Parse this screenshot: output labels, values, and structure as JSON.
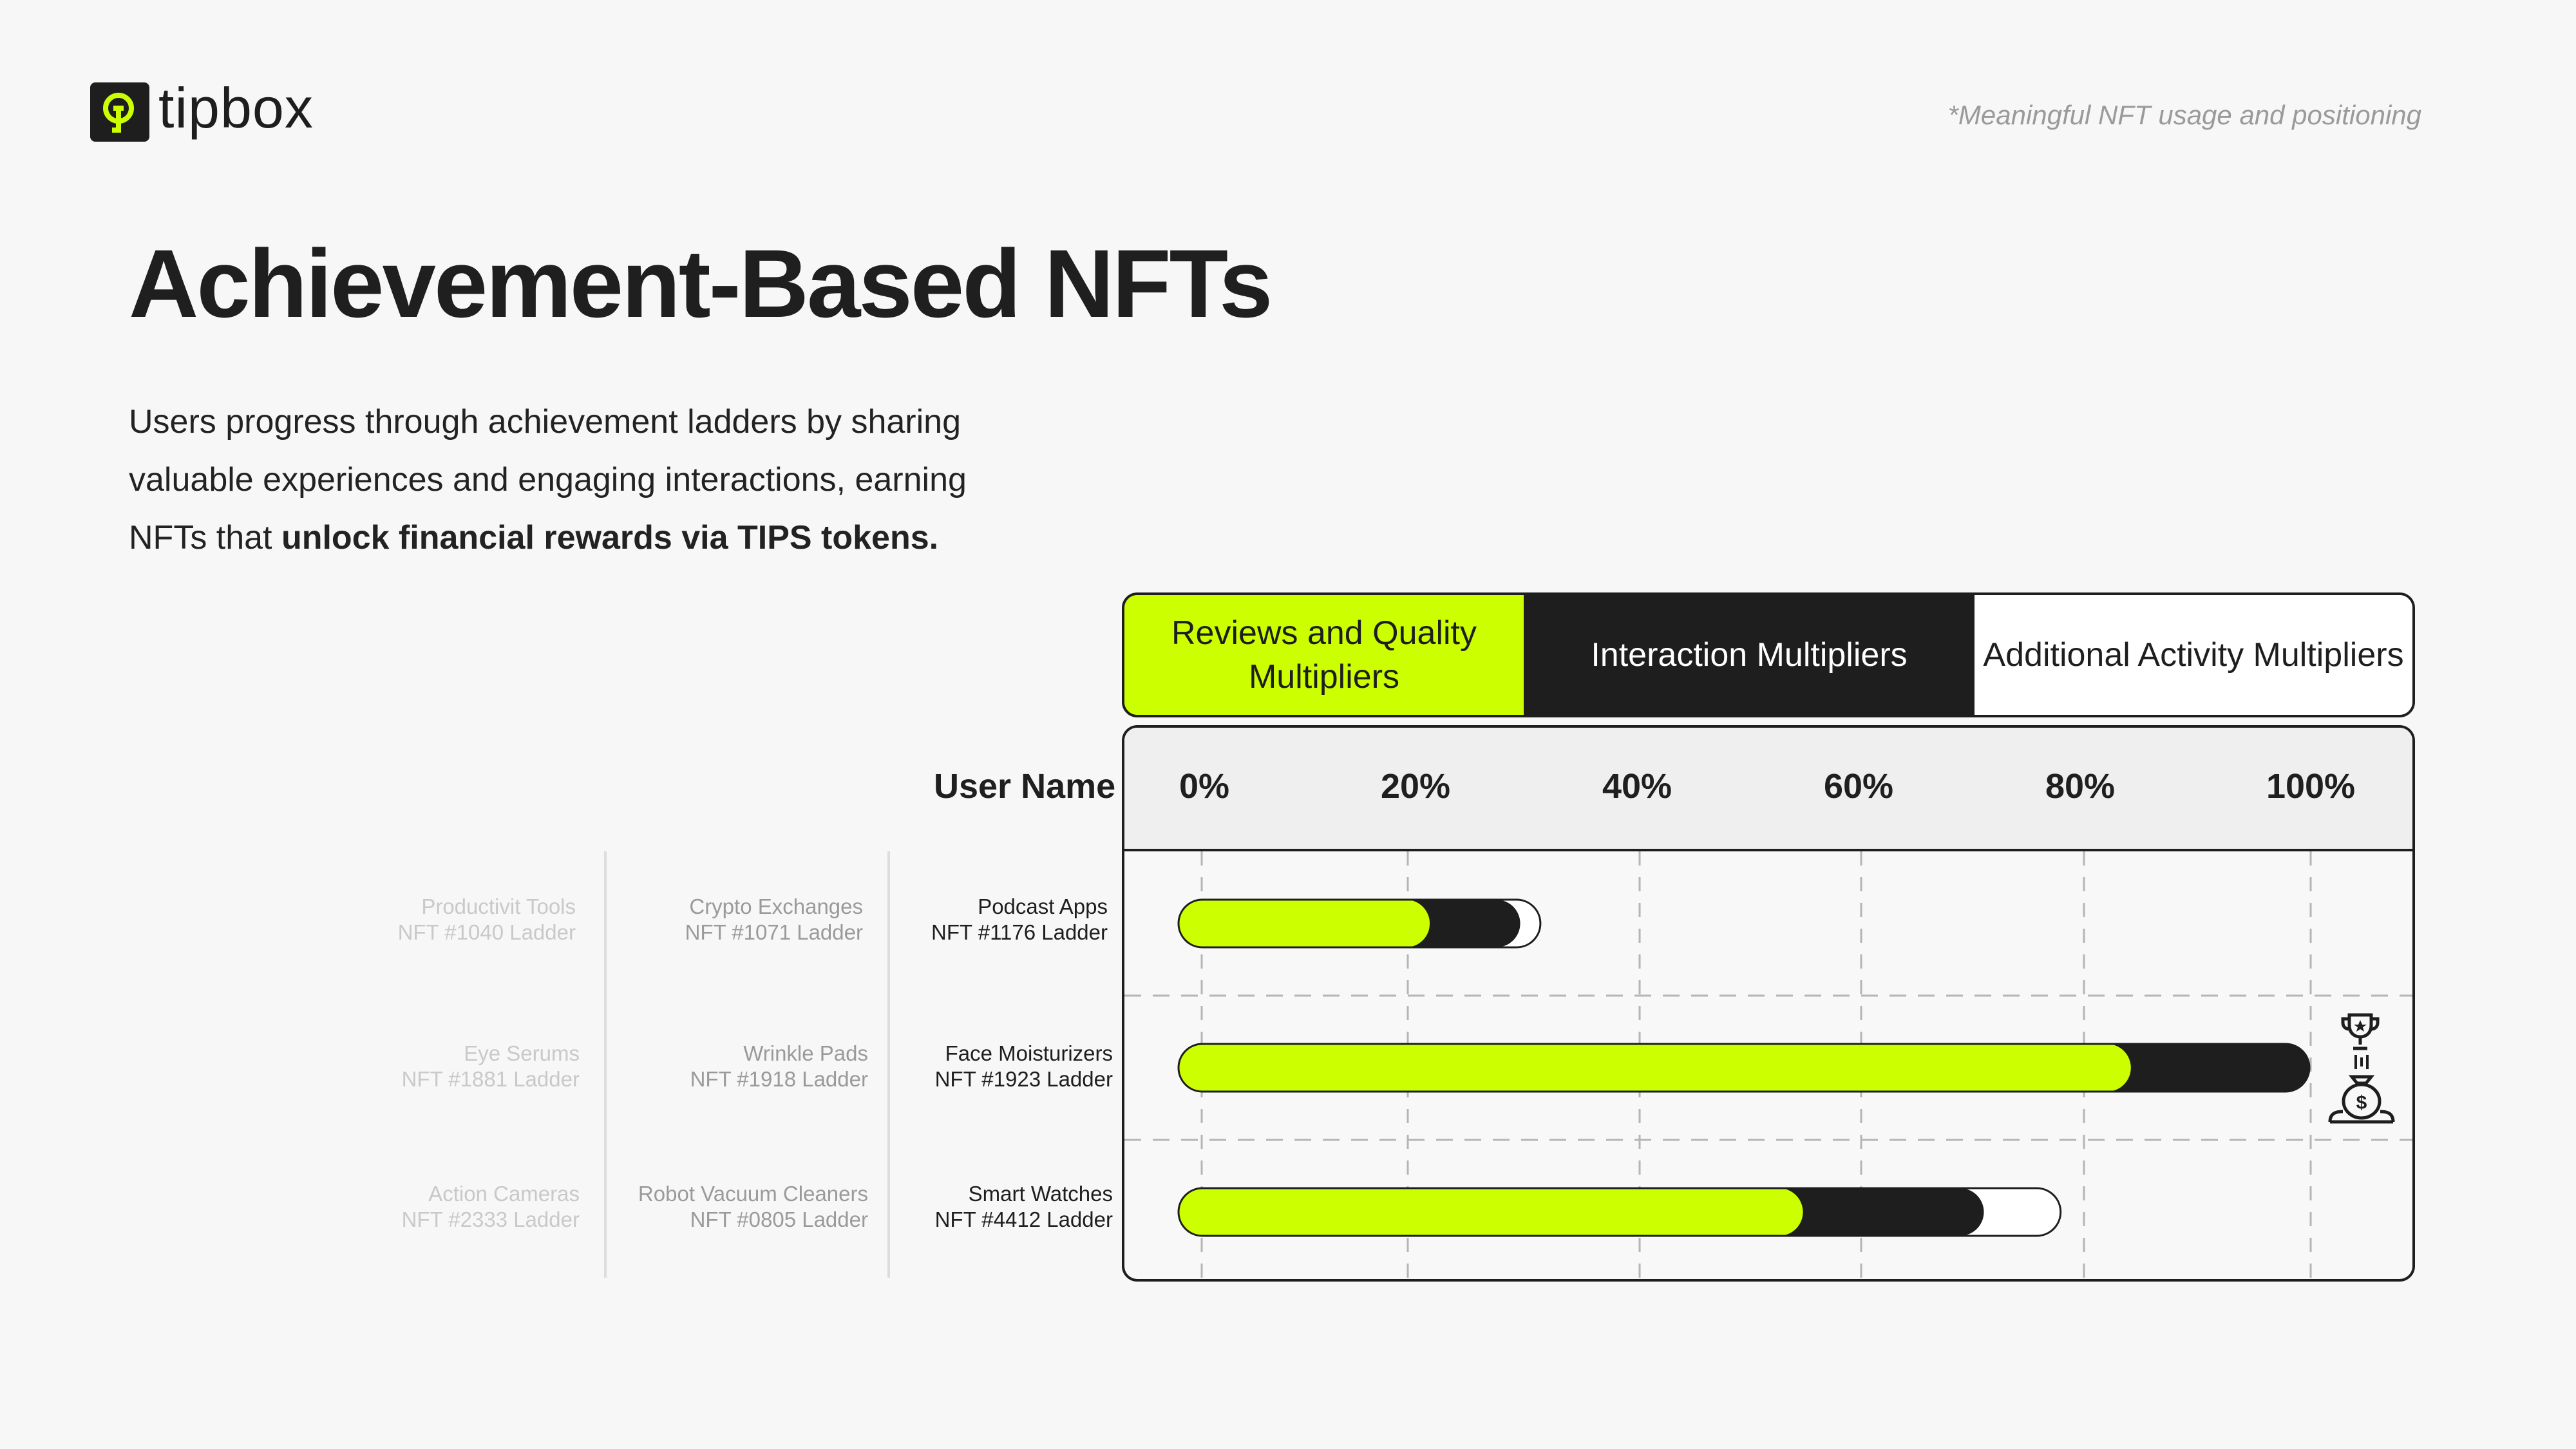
{
  "header": {
    "logo_text": "tipbox",
    "note": "*Meaningful NFT usage and positioning"
  },
  "title": "Achievement-Based NFTs",
  "intro": {
    "line1": "Users progress through achievement ladders by sharing",
    "line2": "valuable experiences and engaging interactions, earning",
    "line3_plain": "NFTs that ",
    "line3_bold": "unlock financial rewards via TIPS tokens."
  },
  "legend": [
    {
      "label": "Reviews and Quality Multipliers",
      "color": "#ccff00"
    },
    {
      "label": "Interaction Multipliers",
      "color": "#1e1e1e"
    },
    {
      "label": "Additional Activity Multipliers",
      "color": "#ffffff"
    }
  ],
  "user_name_header": "User Name",
  "columns": {
    "col1": [
      {
        "category": "Productivit Tools",
        "ladder": "NFT #1040 Ladder"
      },
      {
        "category": "Eye Serums",
        "ladder": "NFT #1881 Ladder"
      },
      {
        "category": "Action Cameras",
        "ladder": "NFT #2333 Ladder"
      }
    ],
    "col2": [
      {
        "category": "Crypto Exchanges",
        "ladder": "NFT #1071 Ladder"
      },
      {
        "category": "Wrinkle Pads",
        "ladder": "NFT #1918 Ladder"
      },
      {
        "category": "Robot Vacuum Cleaners",
        "ladder": "NFT #0805 Ladder"
      }
    ]
  },
  "icons": [
    "trophy-icon",
    "money-bag-icon"
  ],
  "chart_data": {
    "type": "bar",
    "orientation": "horizontal",
    "stacked": true,
    "x_ticks": [
      "0%",
      "20%",
      "40%",
      "60%",
      "80%",
      "100%"
    ],
    "xlim": [
      0,
      100
    ],
    "grid": true,
    "categories": [
      "Podcast Apps NFT #1176 Ladder",
      "Face Moisturizers NFT #1923 Ladder",
      "Smart Watches NFT #4412 Ladder"
    ],
    "rows": [
      {
        "category": "Podcast Apps",
        "ladder": "NFT #1176 Ladder"
      },
      {
        "category": "Face Moisturizers",
        "ladder": "NFT #1923 Ladder"
      },
      {
        "category": "Smart Watches",
        "ladder": "NFT #4412 Ladder"
      }
    ],
    "series": [
      {
        "name": "Reviews and Quality Multipliers",
        "color": "#ccff00",
        "values": [
          18,
          80,
          51
        ]
      },
      {
        "name": "Interaction Multipliers",
        "color": "#1e1e1e",
        "values": [
          8,
          16,
          16
        ]
      },
      {
        "name": "Additional Activity Multipliers",
        "color": "#ffffff",
        "values": [
          6,
          4,
          11
        ]
      }
    ]
  }
}
